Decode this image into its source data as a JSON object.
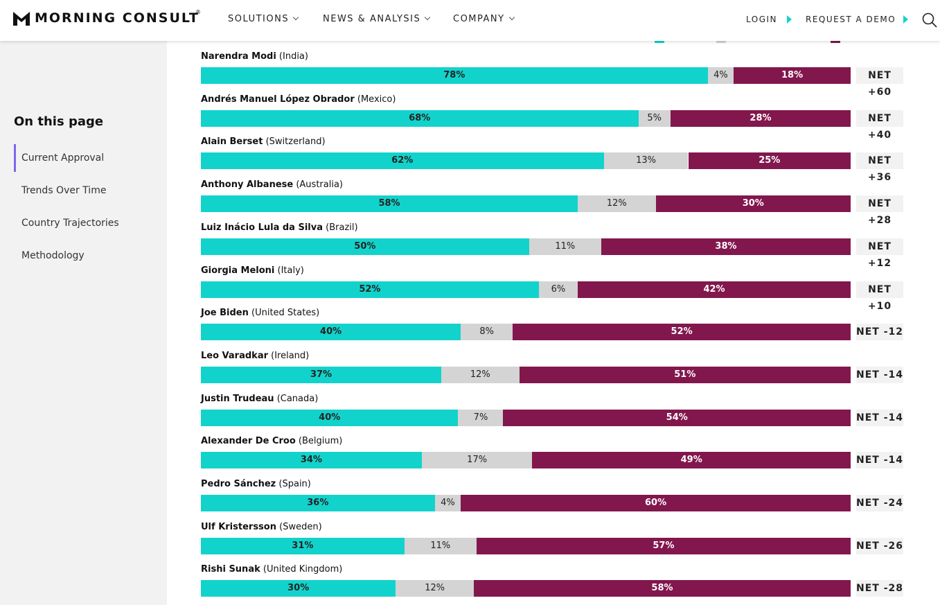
{
  "header": {
    "logo": "MORNING CONSULT",
    "logo_mark": "®",
    "nav": [
      "SOLUTIONS",
      "NEWS & ANALYSIS",
      "COMPANY"
    ],
    "login": "LOGIN",
    "demo": "REQUEST A DEMO"
  },
  "sidebar": {
    "title": "On this page",
    "links": [
      "Current Approval",
      "Trends Over Time",
      "Country Trajectories",
      "Methodology"
    ]
  },
  "chart": {
    "type": "stacked-bar",
    "colors": [
      "#12d3cc",
      "#d4d4d4",
      "#82174d"
    ],
    "rows": [
      {
        "name": "Narendra Modi",
        "country": "(India)",
        "values": [
          78,
          4,
          18
        ],
        "value_labels": [
          "78%",
          "4%",
          "18%"
        ],
        "net": "NET +60"
      },
      {
        "name": "Andrés Manuel López Obrador",
        "country": "(Mexico)",
        "values": [
          68,
          5,
          28
        ],
        "value_labels": [
          "68%",
          "5%",
          "28%"
        ],
        "net": "NET +40"
      },
      {
        "name": "Alain Berset",
        "country": "(Switzerland)",
        "values": [
          62,
          13,
          25
        ],
        "value_labels": [
          "62%",
          "13%",
          "25%"
        ],
        "net": "NET +36"
      },
      {
        "name": "Anthony Albanese",
        "country": "(Australia)",
        "values": [
          58,
          12,
          30
        ],
        "value_labels": [
          "58%",
          "12%",
          "30%"
        ],
        "net": "NET +28"
      },
      {
        "name": "Luiz Inácio Lula da Silva",
        "country": "(Brazil)",
        "values": [
          50,
          11,
          38
        ],
        "value_labels": [
          "50%",
          "11%",
          "38%"
        ],
        "net": "NET +12"
      },
      {
        "name": "Giorgia Meloni",
        "country": "(Italy)",
        "values": [
          52,
          6,
          42
        ],
        "value_labels": [
          "52%",
          "6%",
          "42%"
        ],
        "net": "NET +10"
      },
      {
        "name": "Joe Biden",
        "country": "(United States)",
        "values": [
          40,
          8,
          52
        ],
        "value_labels": [
          "40%",
          "8%",
          "52%"
        ],
        "net": "NET -12"
      },
      {
        "name": "Leo Varadkar",
        "country": "(Ireland)",
        "values": [
          37,
          12,
          51
        ],
        "value_labels": [
          "37%",
          "12%",
          "51%"
        ],
        "net": "NET -14"
      },
      {
        "name": "Justin Trudeau",
        "country": "(Canada)",
        "values": [
          40,
          7,
          54
        ],
        "value_labels": [
          "40%",
          "7%",
          "54%"
        ],
        "net": "NET -14"
      },
      {
        "name": "Alexander De Croo",
        "country": "(Belgium)",
        "values": [
          34,
          17,
          49
        ],
        "value_labels": [
          "34%",
          "17%",
          "49%"
        ],
        "net": "NET -14"
      },
      {
        "name": "Pedro Sánchez",
        "country": "(Spain)",
        "values": [
          36,
          4,
          60
        ],
        "value_labels": [
          "36%",
          "4%",
          "60%"
        ],
        "net": "NET -24"
      },
      {
        "name": "Ulf Kristersson",
        "country": "(Sweden)",
        "values": [
          31,
          11,
          57
        ],
        "value_labels": [
          "31%",
          "11%",
          "57%"
        ],
        "net": "NET -26"
      },
      {
        "name": "Rishi Sunak",
        "country": "(United Kingdom)",
        "values": [
          30,
          12,
          58
        ],
        "value_labels": [
          "30%",
          "12%",
          "58%"
        ],
        "net": "NET -28"
      }
    ]
  }
}
